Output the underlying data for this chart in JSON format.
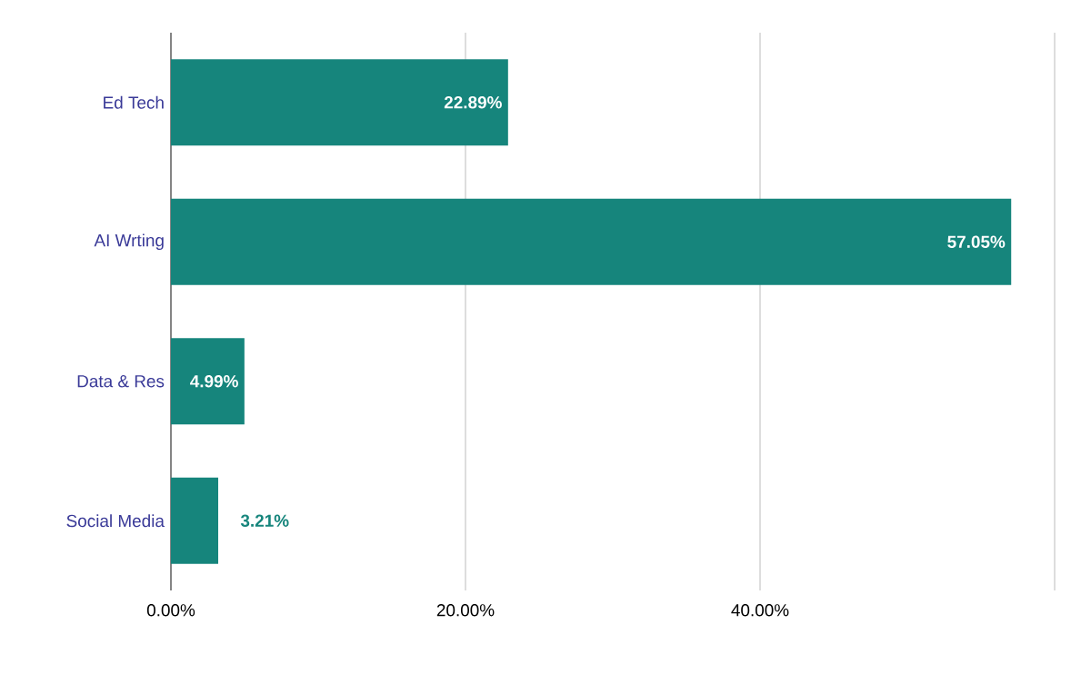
{
  "chart_data": {
    "type": "bar",
    "orientation": "horizontal",
    "categories": [
      "Ed Tech",
      "AI Wrting",
      "Data & Res",
      "Social Media"
    ],
    "values": [
      22.89,
      57.05,
      4.99,
      3.21
    ],
    "value_labels": [
      "22.89%",
      "57.05%",
      "4.99%",
      "3.21%"
    ],
    "color": "#16857c",
    "xlim": [
      0,
      60
    ],
    "xticks": [
      {
        "value": 0,
        "label": "0.00%"
      },
      {
        "value": 20,
        "label": "20.00%"
      },
      {
        "value": 40,
        "label": "40.00%"
      },
      {
        "value": 60,
        "label": null
      }
    ],
    "grid": "x"
  }
}
